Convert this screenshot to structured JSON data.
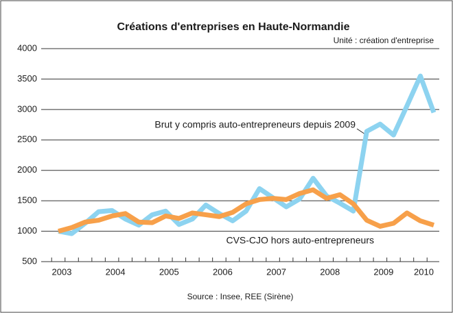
{
  "chart_data": {
    "type": "line",
    "title": "Créations d'entreprises en Haute-Normandie",
    "subtitle": "Unité : création d'entreprise",
    "source": "Source : Insee, REE (Sirène)",
    "categories": [
      "2003",
      null,
      null,
      null,
      "2004",
      null,
      null,
      null,
      "2005",
      null,
      null,
      null,
      "2006",
      null,
      null,
      null,
      "2007",
      null,
      null,
      null,
      "2008",
      null,
      null,
      null,
      "2009",
      null,
      null,
      "2010",
      null
    ],
    "series": [
      {
        "name": "Brut y compris auto-entrepreneurs depuis 2009",
        "color": "#8dd3f0",
        "values": [
          1000,
          960,
          1130,
          1320,
          1340,
          1200,
          1100,
          1270,
          1330,
          1110,
          1200,
          1430,
          1290,
          1170,
          1330,
          1700,
          1550,
          1400,
          1530,
          1870,
          1580,
          1460,
          1330,
          2640,
          2760,
          2580,
          3060,
          3550,
          2950
        ]
      },
      {
        "name": "CVS-CJO hors auto-entrepreneurs",
        "color": "#f7a04a",
        "values": [
          1000,
          1060,
          1150,
          1180,
          1250,
          1290,
          1150,
          1140,
          1250,
          1210,
          1300,
          1270,
          1240,
          1310,
          1450,
          1520,
          1540,
          1520,
          1620,
          1680,
          1540,
          1600,
          1450,
          1180,
          1080,
          1130,
          1300,
          1170,
          1100
        ]
      }
    ],
    "ylim": [
      500,
      4000
    ],
    "yticks": [
      500,
      1000,
      1500,
      2000,
      2500,
      3000,
      3500,
      4000
    ],
    "grid": true
  }
}
